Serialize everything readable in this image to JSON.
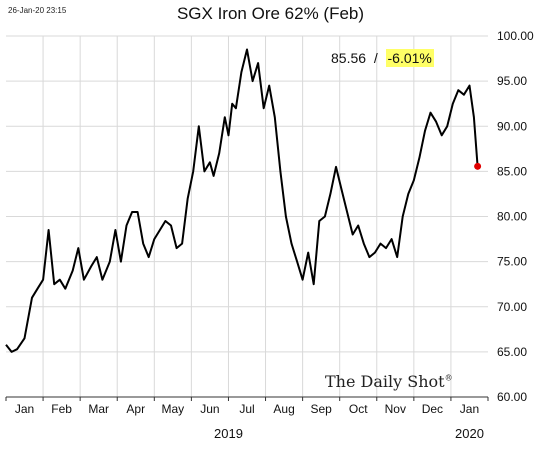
{
  "header": {
    "timestamp": "26-Jan-20 23:15",
    "watermark": "The Daily Shot",
    "watermark_mark": "®"
  },
  "readout": {
    "price": "85.56",
    "separator": "/",
    "change": "-6.01%",
    "highlight_color": "#ffff66"
  },
  "chart_data": {
    "type": "line",
    "title": "SGX Iron Ore 62% (Feb)",
    "xlabel": "",
    "ylabel": "",
    "ylim": [
      60,
      100
    ],
    "yticks": [
      "60.00",
      "65.00",
      "70.00",
      "75.00",
      "80.00",
      "85.00",
      "90.00",
      "95.00",
      "100.00"
    ],
    "xticks": [
      "Jan",
      "Feb",
      "Mar",
      "Apr",
      "May",
      "Jun",
      "Jul",
      "Aug",
      "Sep",
      "Oct",
      "Nov",
      "Dec",
      "Jan"
    ],
    "year_labels": [
      "2019",
      "2020"
    ],
    "grid": true,
    "line_color": "#000000",
    "last_point_color": "#e00000",
    "series": [
      {
        "x": [
          0,
          0.15,
          0.3,
          0.5,
          0.7,
          0.85,
          1.0,
          1.15,
          1.3,
          1.45,
          1.6,
          1.8,
          1.95,
          2.1,
          2.3,
          2.45,
          2.6,
          2.8,
          2.95,
          3.1,
          3.25,
          3.4,
          3.55,
          3.7,
          3.85,
          4.0,
          4.15,
          4.3,
          4.45,
          4.6,
          4.75,
          4.9,
          5.05,
          5.2,
          5.35,
          5.5,
          5.6,
          5.75,
          5.9,
          6.0,
          6.1,
          6.2,
          6.35,
          6.5,
          6.65,
          6.8,
          6.95,
          7.1,
          7.25,
          7.4,
          7.55,
          7.7,
          7.85,
          8.0,
          8.15,
          8.3,
          8.45,
          8.6,
          8.75,
          8.9,
          9.05,
          9.2,
          9.35,
          9.5,
          9.65,
          9.8,
          9.95,
          10.1,
          10.25,
          10.4,
          10.55,
          10.7,
          10.85,
          11.0,
          11.15,
          11.3,
          11.45,
          11.6,
          11.75,
          11.9,
          12.05,
          12.2,
          12.35,
          12.5,
          12.62,
          12.72
        ],
        "y": [
          65.8,
          65.0,
          65.3,
          66.5,
          71.0,
          72.0,
          73.0,
          78.5,
          72.5,
          73.0,
          72.0,
          74.0,
          76.5,
          73.0,
          74.5,
          75.5,
          73.0,
          75.0,
          78.5,
          75.0,
          79.0,
          80.5,
          80.5,
          77.0,
          75.5,
          77.5,
          78.5,
          79.5,
          79.0,
          76.5,
          77.0,
          82.0,
          85.0,
          90.0,
          85.0,
          86.0,
          84.5,
          87.0,
          91.0,
          89.0,
          92.5,
          92.0,
          96.0,
          98.5,
          95.0,
          97.0,
          92.0,
          94.5,
          91.0,
          85.0,
          80.0,
          77.0,
          75.0,
          73.0,
          76.0,
          72.5,
          79.5,
          80.0,
          82.5,
          85.5,
          83.0,
          80.5,
          78.0,
          79.0,
          77.0,
          75.5,
          76.0,
          77.0,
          76.5,
          77.5,
          75.5,
          80.0,
          82.5,
          84.0,
          86.5,
          89.5,
          91.5,
          90.5,
          89.0,
          90.0,
          92.5,
          94.0,
          93.5,
          94.5,
          91.0,
          85.56
        ]
      }
    ]
  }
}
